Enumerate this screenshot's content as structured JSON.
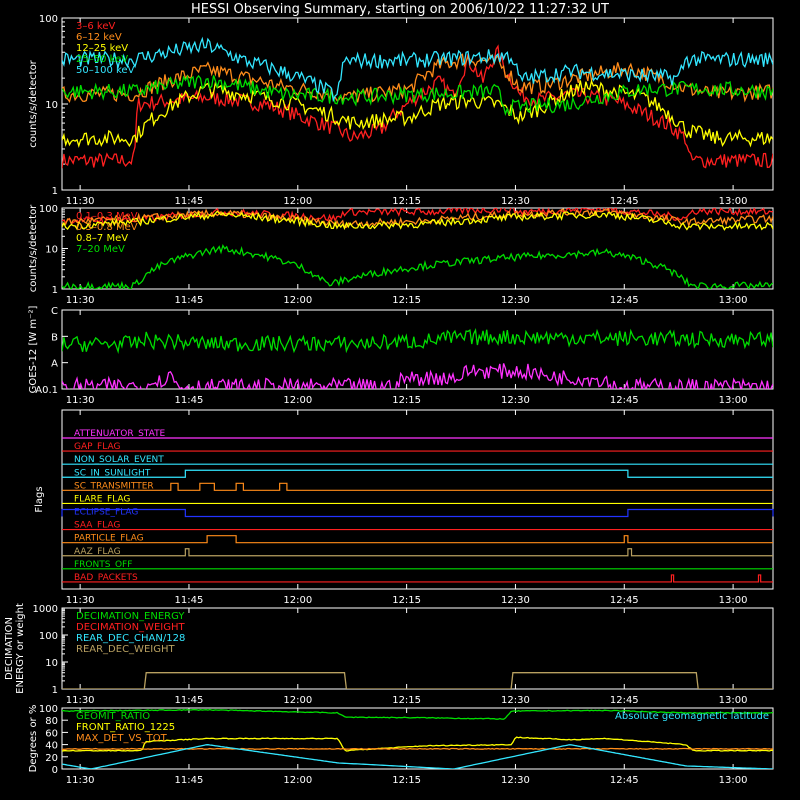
{
  "title": "HESSI Observing Summary, starting on 2006/10/22 11:27:32 UT",
  "time_ticks": [
    "11:30",
    "11:45",
    "12:00",
    "12:15",
    "12:30",
    "12:45",
    "13:00"
  ],
  "time_tick_minutes": [
    2.5,
    17.5,
    32.5,
    47.5,
    62.5,
    77.5,
    92.5
  ],
  "time_range_minutes": [
    0,
    98
  ],
  "colors": {
    "background": "#000000",
    "axes": "#ffffff",
    "red": "#ff2020",
    "orange": "#ff8c1a",
    "yellow": "#ffff00",
    "green": "#00dd00",
    "cyan": "#33e6ff",
    "magenta": "#ff33ff",
    "blue": "#2233ff",
    "olive": "#b8a060"
  },
  "chart_data": [
    {
      "panel": "lightcurves-low",
      "type": "line",
      "ylabel": "counts/s/detector",
      "yscale": "log",
      "ylim": [
        1,
        100
      ],
      "yticks": [
        "1",
        "10",
        "100"
      ],
      "legend_placement": "top-left",
      "series": [
        {
          "name": "3–6 keV",
          "color": "red",
          "x": [
            0,
            10,
            10.5,
            20,
            28,
            33,
            38,
            40,
            44,
            47,
            50,
            52,
            54,
            56,
            58,
            60,
            61,
            63,
            66,
            70,
            76,
            80,
            86,
            86.5,
            98
          ],
          "y": [
            2.2,
            2.2,
            10,
            12,
            10,
            7,
            5,
            4,
            5,
            9,
            14,
            18,
            12,
            32,
            18,
            40,
            25,
            13,
            11,
            13,
            11,
            8,
            4,
            2.2,
            2.2
          ]
        },
        {
          "name": "6–12 keV",
          "color": "orange",
          "x": [
            0,
            10,
            20,
            30,
            40,
            48,
            52,
            56,
            60,
            63,
            66,
            72,
            78,
            86,
            90,
            98
          ],
          "y": [
            13,
            13,
            25,
            16,
            12,
            15,
            28,
            34,
            30,
            16,
            16,
            21,
            26,
            15,
            13,
            14
          ]
        },
        {
          "name": "12–25 keV",
          "color": "yellow",
          "x": [
            0,
            10,
            20,
            30,
            40,
            48,
            52,
            56,
            60,
            63,
            66,
            72,
            80,
            86,
            90,
            98
          ],
          "y": [
            4,
            4,
            15,
            11,
            6,
            7,
            10,
            11,
            10,
            7,
            9,
            16,
            12,
            5,
            4,
            4
          ]
        },
        {
          "name": "25–50 keV",
          "color": "green",
          "x": [
            0,
            10,
            20,
            30,
            40,
            50,
            60,
            61,
            70,
            80,
            90,
            98
          ],
          "y": [
            14,
            14,
            19,
            13,
            12,
            13,
            14,
            9,
            10,
            15,
            15,
            14
          ]
        },
        {
          "name": "50–100 keV",
          "color": "cyan",
          "x": [
            0,
            10,
            20,
            25,
            38,
            39,
            48,
            60,
            62,
            63,
            70,
            85,
            86,
            98
          ],
          "y": [
            33,
            33,
            48,
            32,
            12,
            32,
            32,
            36,
            36,
            19,
            24,
            20,
            33,
            33
          ]
        }
      ]
    },
    {
      "panel": "lightcurves-high",
      "type": "line",
      "ylabel": "counts/s/detector",
      "yscale": "log",
      "ylim": [
        1,
        100
      ],
      "yticks": [
        "1",
        "10",
        "100"
      ],
      "legend_placement": "top-left",
      "series": [
        {
          "name": "0.1–0.3 MeV",
          "color": "red",
          "x": [
            0,
            10,
            22,
            38,
            39,
            50,
            62,
            63,
            75,
            86,
            87,
            98
          ],
          "y": [
            50,
            50,
            80,
            55,
            80,
            80,
            95,
            80,
            95,
            55,
            85,
            80
          ]
        },
        {
          "name": "0.3–0.8 MeV",
          "color": "orange",
          "x": [
            0,
            10,
            22,
            38,
            50,
            63,
            75,
            86,
            98
          ],
          "y": [
            45,
            55,
            75,
            40,
            48,
            72,
            80,
            45,
            55
          ]
        },
        {
          "name": "0.8–7 MeV",
          "color": "yellow",
          "x": [
            0,
            10,
            22,
            38,
            50,
            63,
            75,
            86,
            98
          ],
          "y": [
            35,
            45,
            70,
            35,
            40,
            60,
            70,
            35,
            35
          ]
        },
        {
          "name": "7–20 MeV",
          "color": "green",
          "x": [
            0,
            10,
            11,
            22,
            36,
            37,
            62,
            75,
            86,
            87,
            98
          ],
          "y": [
            1.2,
            1.2,
            1.8,
            10,
            1.6,
            1.3,
            6,
            8,
            1.5,
            1.2,
            1.2
          ]
        }
      ]
    },
    {
      "panel": "goes",
      "type": "line",
      "ylabel": "GOES-12 [W m⁻²]",
      "yticks": [
        "A0.1",
        "A",
        "B",
        "C"
      ],
      "ylim": [
        0,
        3
      ],
      "series": [
        {
          "name": "GOES long",
          "color": "green",
          "x": [
            0,
            10,
            12,
            13,
            15,
            16,
            20,
            40,
            50,
            53,
            60,
            70,
            80,
            90,
            98
          ],
          "y": [
            1.7,
            1.72,
            1.9,
            1.78,
            1.85,
            1.78,
            1.72,
            1.72,
            1.82,
            1.92,
            1.98,
            1.95,
            1.92,
            1.88,
            1.88
          ]
        },
        {
          "name": "GOES short",
          "color": "magenta",
          "x": [
            0,
            12,
            12.5,
            13,
            15,
            16,
            20,
            46,
            47,
            55,
            56,
            65,
            66,
            75,
            76,
            98
          ],
          "y": [
            0.1,
            0.12,
            0.6,
            0.2,
            0.55,
            0.1,
            0.1,
            0.1,
            0.4,
            0.45,
            0.7,
            0.65,
            0.5,
            0.35,
            0.1,
            0.1
          ]
        }
      ]
    },
    {
      "panel": "flags",
      "type": "line",
      "ylabel": "Flags",
      "series": [
        {
          "name": "ATTENUATOR_STATE",
          "color": "magenta",
          "segments": []
        },
        {
          "name": "GAP_FLAG",
          "color": "red",
          "segments": []
        },
        {
          "name": "NON_SOLAR_EVENT",
          "color": "cyan",
          "segments": []
        },
        {
          "name": "SC_IN_SUNLIGHT",
          "color": "cyan",
          "segments": [
            [
              17,
              78
            ]
          ]
        },
        {
          "name": "SC_TRANSMITTER",
          "color": "orange",
          "segments": [
            [
              15,
              16
            ],
            [
              19,
              21
            ],
            [
              24,
              25
            ],
            [
              30,
              31
            ]
          ]
        },
        {
          "name": "FLARE_FLAG",
          "color": "yellow",
          "segments": []
        },
        {
          "name": "ECLIPSE_FLAG",
          "color": "blue",
          "segments": [
            [
              0,
              17
            ],
            [
              78,
              98
            ]
          ]
        },
        {
          "name": "SAA_FLAG",
          "color": "red",
          "segments": []
        },
        {
          "name": "PARTICLE_FLAG",
          "color": "orange",
          "segments": [
            [
              20,
              24
            ],
            [
              77.5,
              78
            ]
          ]
        },
        {
          "name": "AAZ_FLAG",
          "color": "olive",
          "segments": [
            [
              17,
              17.5
            ],
            [
              78,
              78.5
            ]
          ]
        },
        {
          "name": "FRONTS_OFF",
          "color": "green",
          "segments": []
        },
        {
          "name": "BAD_PACKETS",
          "color": "red",
          "segments": [
            [
              84,
              84.3
            ],
            [
              96,
              96.3
            ]
          ]
        }
      ]
    },
    {
      "panel": "decimation",
      "type": "line",
      "ylabel": "DECIMATION ENERGY or weight",
      "yscale": "log",
      "ylim": [
        1,
        1000
      ],
      "yticks": [
        "1",
        "10",
        "100",
        "1000"
      ],
      "legend_placement": "top-left",
      "series": [
        {
          "name": "DECIMATION_ENERGY",
          "color": "green",
          "x": [],
          "y": []
        },
        {
          "name": "DECIMATION_WEIGHT",
          "color": "red",
          "x": [],
          "y": []
        },
        {
          "name": "REAR_DEC_CHAN/128",
          "color": "cyan",
          "x": [],
          "y": []
        },
        {
          "name": "REAR_DEC_WEIGHT",
          "color": "olive",
          "x": [
            0,
            11.5,
            11.5,
            39,
            39,
            62,
            62,
            87.5,
            87.5,
            98
          ],
          "y": [
            1,
            1,
            4,
            4,
            1,
            1,
            4,
            4,
            1,
            1
          ]
        }
      ]
    },
    {
      "panel": "geometry",
      "type": "line",
      "ylabel": "Degrees or %",
      "ylim": [
        0,
        100
      ],
      "yticks": [
        "0",
        "20",
        "40",
        "60",
        "80",
        "100"
      ],
      "legend_placement": "top-left",
      "annotation": "Absolute geomagnetic latitude",
      "series": [
        {
          "name": "GEOMIT_RATIO",
          "color": "green",
          "x": [
            0,
            10,
            20,
            38,
            39,
            50,
            61,
            62,
            75,
            86,
            98
          ],
          "y": [
            95,
            96,
            97,
            92,
            85,
            84,
            82,
            95,
            96,
            92,
            92
          ]
        },
        {
          "name": "FRONT_RATIO_1225",
          "color": "yellow",
          "x": [
            0,
            11,
            11.5,
            20,
            38,
            39,
            50,
            62,
            62.5,
            70,
            75,
            86,
            87,
            98
          ],
          "y": [
            30,
            30,
            45,
            50,
            50,
            30,
            38,
            40,
            52,
            48,
            50,
            40,
            30,
            30
          ]
        },
        {
          "name": "MAX_DET_VS_TOT",
          "color": "orange",
          "x": [
            0,
            98
          ],
          "y": [
            33,
            33
          ]
        },
        {
          "name": "Absolute geomagnetic latitude",
          "color": "cyan",
          "x": [
            0,
            4,
            20,
            38,
            54,
            70,
            86,
            98
          ],
          "y": [
            8,
            0,
            40,
            10,
            0,
            40,
            5,
            0
          ]
        }
      ]
    }
  ]
}
